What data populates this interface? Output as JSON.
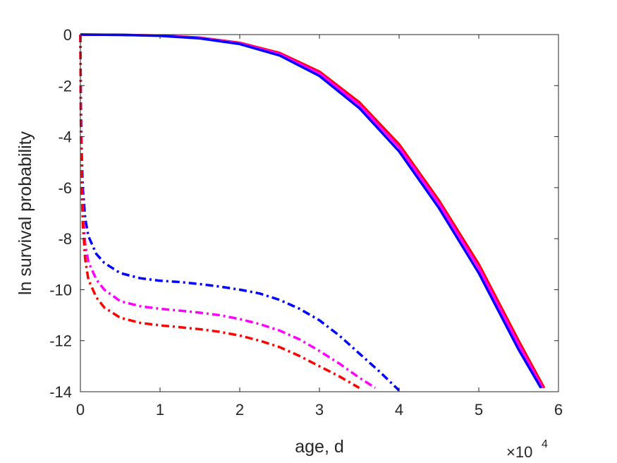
{
  "chart_data": {
    "type": "line",
    "xlabel": "age, d",
    "ylabel": "ln survival probability",
    "x_multiplier": {
      "base": "×10",
      "exponent": "4"
    },
    "xlim": [
      0,
      60000
    ],
    "ylim": [
      -14,
      0
    ],
    "xticks": [
      0,
      10000,
      20000,
      30000,
      40000,
      50000,
      60000
    ],
    "xtick_labels": [
      "0",
      "1",
      "2",
      "3",
      "4",
      "5",
      "6"
    ],
    "yticks": [
      0,
      -2,
      -4,
      -6,
      -8,
      -10,
      -12,
      -14
    ],
    "ytick_labels": [
      "0",
      "-2",
      "-4",
      "-6",
      "-8",
      "-10",
      "-12",
      "-14"
    ],
    "grid": false,
    "box": true,
    "series": [
      {
        "color": "#ff0000",
        "style": "solid",
        "x": [
          0,
          5000,
          10000,
          15000,
          20000,
          25000,
          30000,
          35000,
          40000,
          45000,
          50000,
          55000,
          58200
        ],
        "y": [
          0,
          -0.01,
          -0.04,
          -0.12,
          -0.32,
          -0.72,
          -1.45,
          -2.65,
          -4.3,
          -6.5,
          -9.0,
          -12.0,
          -13.85
        ]
      },
      {
        "color": "#ff00ff",
        "style": "solid",
        "x": [
          0,
          5000,
          10000,
          15000,
          20000,
          25000,
          30000,
          35000,
          40000,
          45000,
          50000,
          55000,
          58000
        ],
        "y": [
          0,
          -0.01,
          -0.04,
          -0.13,
          -0.34,
          -0.76,
          -1.52,
          -2.75,
          -4.42,
          -6.62,
          -9.15,
          -12.15,
          -13.85
        ]
      },
      {
        "color": "#0000ff",
        "style": "solid",
        "x": [
          0,
          5000,
          10000,
          15000,
          20000,
          25000,
          30000,
          35000,
          40000,
          45000,
          50000,
          55000,
          57800
        ],
        "y": [
          0,
          -0.01,
          -0.05,
          -0.15,
          -0.37,
          -0.82,
          -1.62,
          -2.88,
          -4.58,
          -6.8,
          -9.35,
          -12.35,
          -13.85
        ]
      },
      {
        "color": "#0000ff",
        "style": "dashdot",
        "x": [
          0,
          50,
          150,
          300,
          600,
          1000,
          2000,
          3000,
          5000,
          7500,
          10000,
          12500,
          15000,
          17500,
          20000,
          22500,
          25000,
          27500,
          30000,
          32500,
          35000,
          37500,
          40000
        ],
        "y": [
          0,
          -2.5,
          -4.5,
          -6.0,
          -7.2,
          -7.9,
          -8.6,
          -8.95,
          -9.35,
          -9.55,
          -9.65,
          -9.7,
          -9.78,
          -9.88,
          -10.0,
          -10.15,
          -10.4,
          -10.75,
          -11.2,
          -11.8,
          -12.5,
          -13.2,
          -13.95
        ]
      },
      {
        "color": "#ff00ff",
        "style": "dashdot",
        "x": [
          0,
          50,
          150,
          300,
          600,
          1000,
          2000,
          3000,
          5000,
          7500,
          10000,
          12500,
          15000,
          17500,
          20000,
          22500,
          25000,
          27500,
          30000,
          32500,
          35000,
          37000
        ],
        "y": [
          0,
          -3.0,
          -5.2,
          -6.9,
          -8.2,
          -8.9,
          -9.6,
          -10.0,
          -10.45,
          -10.65,
          -10.75,
          -10.82,
          -10.9,
          -11.0,
          -11.15,
          -11.35,
          -11.6,
          -11.95,
          -12.4,
          -12.9,
          -13.45,
          -13.85
        ]
      },
      {
        "color": "#ff0000",
        "style": "dashdot",
        "x": [
          0,
          50,
          150,
          300,
          600,
          1000,
          2000,
          3000,
          5000,
          7500,
          10000,
          12500,
          15000,
          17500,
          20000,
          22500,
          25000,
          27500,
          30000,
          32500,
          35000
        ],
        "y": [
          0,
          -3.3,
          -5.6,
          -7.4,
          -8.8,
          -9.6,
          -10.3,
          -10.7,
          -11.1,
          -11.3,
          -11.4,
          -11.47,
          -11.55,
          -11.65,
          -11.8,
          -12.0,
          -12.25,
          -12.6,
          -13.0,
          -13.4,
          -13.85
        ]
      }
    ]
  }
}
